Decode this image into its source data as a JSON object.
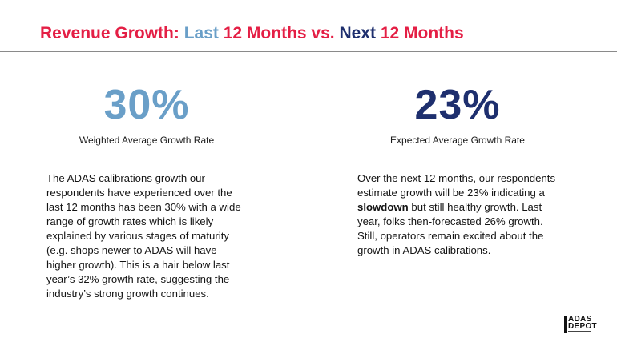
{
  "header": {
    "title_part1": "Revenue Growth:",
    "title_part2": "Last",
    "title_part3": "12 Months vs.",
    "title_part4": "Next",
    "title_part5": "12 Months"
  },
  "left": {
    "stat": "30%",
    "label": "Weighted Average Growth Rate",
    "body": "The ADAS calibrations growth our respondents have experienced over the last 12 months has been 30% with a wide range of growth rates which is likely explained by various stages of maturity (e.g. shops newer to ADAS will have higher growth). This is a hair below last year’s 32% growth rate, suggesting the industry’s strong growth continues."
  },
  "right": {
    "stat": "23%",
    "label": "Expected Average Growth Rate",
    "body_part1": "Over the next 12 months, our respondents estimate growth will be 23% indicating a",
    "body_bold": "slowdown",
    "body_part2": "but still healthy growth. Last year, folks then-forecasted 26% growth. Still, operators remain excited about the growth in ADAS calibrations."
  },
  "logo": {
    "line1": "ADAS",
    "line2": "DEPOT"
  },
  "colors": {
    "red": "#e41f45",
    "light_blue": "#6a9fc8",
    "navy": "#1e2f6e"
  }
}
